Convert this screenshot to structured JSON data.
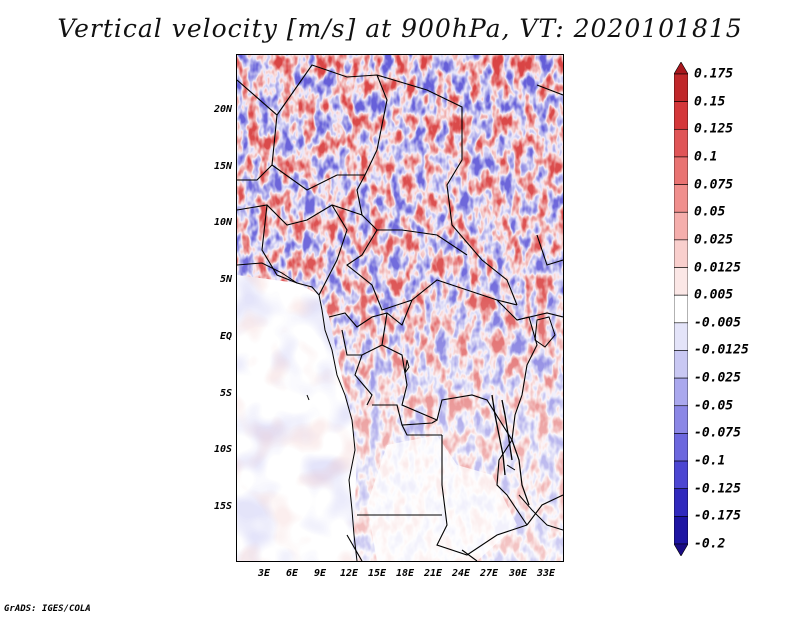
{
  "title": "Vertical velocity [m/s] at 900hPa, VT: 2020101815",
  "credit": "GrADS: IGES/COLA",
  "map": {
    "lat_labels": [
      "20N",
      "15N",
      "10N",
      "5N",
      "EQ",
      "5S",
      "10S",
      "15S"
    ],
    "lon_labels": [
      "3E",
      "6E",
      "9E",
      "12E",
      "15E",
      "18E",
      "21E",
      "24E",
      "27E",
      "30E",
      "33E"
    ],
    "field": "Vertical velocity at 900hPa",
    "colors": {
      "positive": "#d83a3a",
      "negative": "#5b55d6",
      "border": "#000000"
    }
  },
  "colorbar": {
    "labels": [
      "0.175",
      "0.15",
      "0.125",
      "0.1",
      "0.075",
      "0.05",
      "0.025",
      "0.0125",
      "0.005",
      "-0.005",
      "-0.0125",
      "-0.025",
      "-0.05",
      "-0.075",
      "-0.1",
      "-0.125",
      "-0.175",
      "-0.2"
    ],
    "colors": [
      "#a8171d",
      "#c0272a",
      "#d4373a",
      "#e05557",
      "#e97372",
      "#f08f8d",
      "#f5aeac",
      "#f9cfcd",
      "#fbe7e6",
      "#ffffff",
      "#e4e4f9",
      "#c9c8f3",
      "#aaa8ee",
      "#8b87e6",
      "#6c67de",
      "#4c46d2",
      "#3029bd",
      "#1e15a3",
      "#1a0c85"
    ]
  }
}
